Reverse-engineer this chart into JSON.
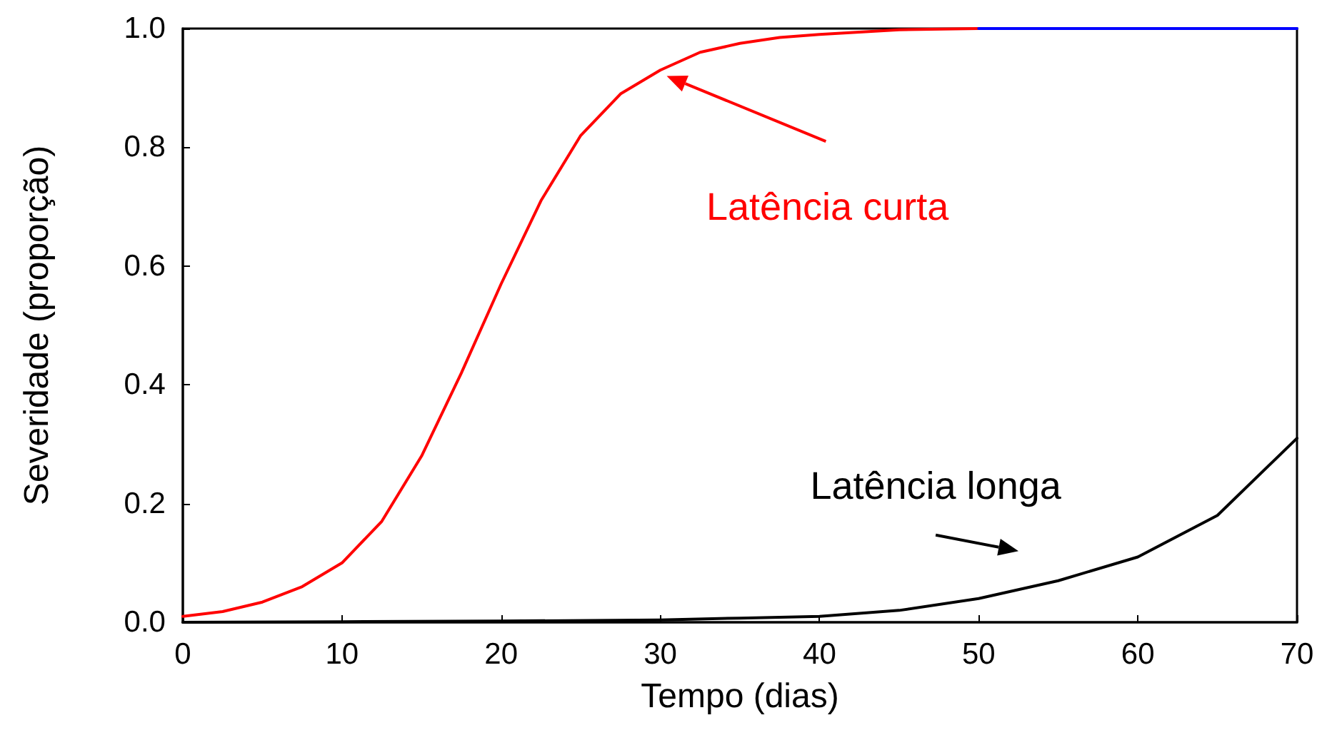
{
  "chart_data": {
    "type": "line",
    "xlabel": "Tempo (dias)",
    "ylabel": "Severidade (proporção)",
    "xlim": [
      0,
      70
    ],
    "xticks": [
      0,
      10,
      20,
      30,
      40,
      50,
      60,
      70
    ],
    "ylim": [
      0,
      1
    ],
    "yticks": [
      {
        "value": 0,
        "label": "0.0"
      },
      {
        "value": 0.2,
        "label": "0.2"
      },
      {
        "value": 0.4,
        "label": "0.4"
      },
      {
        "value": 0.6,
        "label": "0.6"
      },
      {
        "value": 0.8,
        "label": "0.8"
      },
      {
        "value": 1,
        "label": "1.0"
      }
    ],
    "grid": false,
    "marker": "none",
    "line_style": "solid",
    "annotations": [
      "Latência curta",
      "Latência longa"
    ],
    "series": [
      {
        "color": "#ff0000",
        "x": [
          0,
          2.5,
          5,
          7.5,
          10,
          12.5,
          15,
          17.5,
          20,
          22.5,
          25,
          27.5,
          30,
          32.5,
          35,
          37.5,
          40,
          45,
          50
        ],
        "values": [
          0.01,
          0.018,
          0.034,
          0.06,
          0.1,
          0.17,
          0.28,
          0.42,
          0.57,
          0.71,
          0.82,
          0.89,
          0.93,
          0.96,
          0.975,
          0.985,
          0.99,
          0.998,
          1.0
        ]
      },
      {
        "color": "#0000ff",
        "x": [
          50,
          55,
          60,
          65,
          70
        ],
        "values": [
          1.0,
          1.0,
          1.0,
          1.0,
          1.0
        ]
      },
      {
        "color": "#000000",
        "x": [
          0,
          10,
          20,
          30,
          35,
          40,
          45,
          50,
          55,
          60,
          65,
          70
        ],
        "values": [
          0,
          0.001,
          0.002,
          0.004,
          0.007,
          0.01,
          0.02,
          0.04,
          0.07,
          0.11,
          0.18,
          0.31
        ]
      }
    ]
  }
}
